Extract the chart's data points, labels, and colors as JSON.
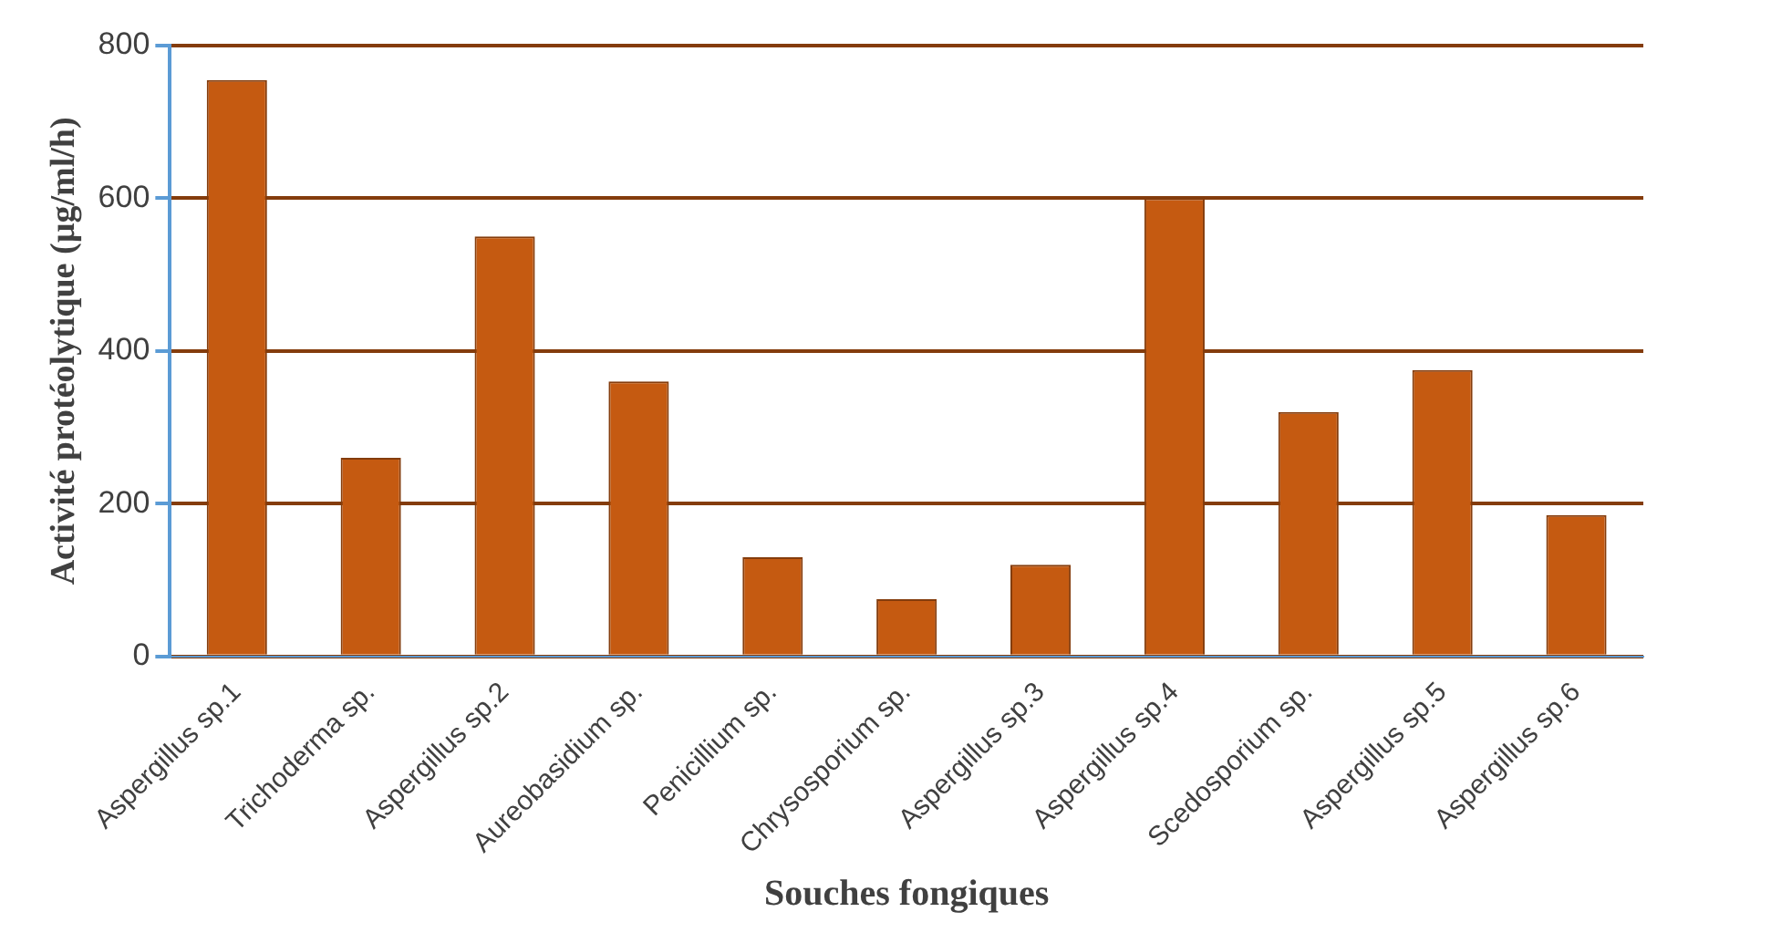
{
  "chart_data": {
    "type": "bar",
    "xlabel": "Souches fongiques",
    "ylabel": "Activité protéolytique (µg/ml/h)",
    "categories": [
      "Aspergillus sp.1",
      "Trichoderma sp.",
      "Aspergillus sp.2",
      "Aureobasidium sp.",
      "Penicillium sp.",
      "Chrysosporium sp.",
      "Aspergillus sp.3",
      "Aspergillus sp.4",
      "Scedosporium sp.",
      "Aspergillus sp.5",
      "Aspergillus sp.6"
    ],
    "values": [
      755,
      260,
      550,
      360,
      130,
      75,
      120,
      600,
      320,
      375,
      185
    ],
    "color": "#c55a11",
    "ylim": [
      0,
      800
    ],
    "yticks": [
      0,
      200,
      400,
      600,
      800
    ],
    "grid": "y"
  }
}
